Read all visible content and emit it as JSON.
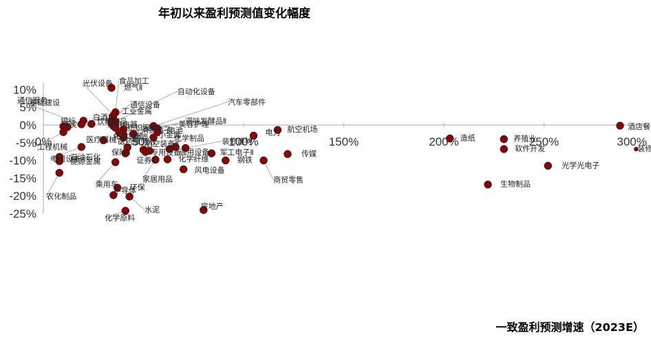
{
  "chart_data": {
    "type": "scatter",
    "title": "年初以来盈利预测值变化幅度",
    "xlabel": "一致盈利预测增速（2023E）",
    "ylabel": "",
    "xlim": [
      0,
      300
    ],
    "ylim": [
      -25,
      12
    ],
    "x_ticks": [
      0,
      50,
      100,
      150,
      200,
      250,
      300
    ],
    "x_tick_labels": [
      "0%",
      "50%",
      "100%",
      "150%",
      "200%",
      "250%",
      "300%"
    ],
    "y_ticks": [
      10,
      5,
      0,
      -5,
      -10,
      -15,
      -20,
      -25
    ],
    "y_tick_labels": [
      "10%",
      "5%",
      "0%",
      "-5%",
      "-10%",
      "-15%",
      "-20%",
      "-25%"
    ],
    "marker_color": "#7b0a0a",
    "axis_color": "#aaaaaa",
    "points": [
      {
        "name": "燃气Ⅱ",
        "x": 34,
        "y": 10.5
      },
      {
        "name": "食品加工",
        "x": 36,
        "y": 3.6
      },
      {
        "name": "光伏设备",
        "x": 35,
        "y": 2.7
      },
      {
        "name": "通信设备",
        "x": 34,
        "y": 1.2
      },
      {
        "name": "自动化设备",
        "x": 36,
        "y": 1
      },
      {
        "name": "基础建设",
        "x": 20,
        "y": 1.2
      },
      {
        "name": "通信服务",
        "x": 19,
        "y": 0.2
      },
      {
        "name": "白酒Ⅱ",
        "x": 24,
        "y": 0.3
      },
      {
        "name": "工业金属",
        "x": 34,
        "y": 0.5
      },
      {
        "name": "饮料制品",
        "x": 35,
        "y": -0.3
      },
      {
        "name": "汽车零部件",
        "x": 55,
        "y": -0.3
      },
      {
        "name": "煤炭",
        "x": 12,
        "y": -0.6
      },
      {
        "name": "家用电器",
        "x": 36,
        "y": -0.8
      },
      {
        "name": "调味发酵品Ⅱ",
        "x": 57,
        "y": -1
      },
      {
        "name": "航空机场",
        "x": 117,
        "y": -1.4
      },
      {
        "name": "银行",
        "x": 10,
        "y": -0.4
      },
      {
        "name": "纺织服饰",
        "x": 40,
        "y": -1.2
      },
      {
        "name": "电池",
        "x": 57,
        "y": -2
      },
      {
        "name": "消费电子",
        "x": 45,
        "y": -2.5
      },
      {
        "name": "小金属",
        "x": 55,
        "y": -3.5
      },
      {
        "name": "电力",
        "x": 105,
        "y": -3
      },
      {
        "name": "工程机械",
        "x": 10,
        "y": -2
      },
      {
        "name": "化学制药",
        "x": 40,
        "y": -3.5
      },
      {
        "name": "医疗器械",
        "x": 30,
        "y": -4.3
      },
      {
        "name": "物流",
        "x": 40,
        "y": -2.8
      },
      {
        "name": "美容护理",
        "x": 38,
        "y": -2.2
      },
      {
        "name": "造纸",
        "x": 203,
        "y": -3.8
      },
      {
        "name": "养殖业",
        "x": 230,
        "y": -4
      },
      {
        "name": "化学制品",
        "x": 66,
        "y": -6.2
      },
      {
        "name": "装修建材",
        "x": 71,
        "y": -6.5
      },
      {
        "name": "医药服务",
        "x": 42,
        "y": -6.3
      },
      {
        "name": "航空装备Ⅱ",
        "x": 50,
        "y": -7
      },
      {
        "name": "专用设备",
        "x": 53,
        "y": -7.3
      },
      {
        "name": "通用设备",
        "x": 63,
        "y": -6.8
      },
      {
        "name": "电网设备",
        "x": 19,
        "y": -6.2
      },
      {
        "name": "软件开发",
        "x": 230,
        "y": -6.8
      },
      {
        "name": "装修装饰Ⅱ",
        "x": 296,
        "y": -6.8
      },
      {
        "name": "证券Ⅱ",
        "x": 51,
        "y": -7.6
      },
      {
        "name": "保险Ⅱ",
        "x": 41,
        "y": -8
      },
      {
        "name": "军工电子Ⅱ",
        "x": 84,
        "y": -8
      },
      {
        "name": "传媒",
        "x": 122,
        "y": -8.2
      },
      {
        "name": "石油石化",
        "x": 8,
        "y": -9
      },
      {
        "name": "能源金属",
        "x": 8,
        "y": -10.2
      },
      {
        "name": "化学纤维",
        "x": 62,
        "y": -9.7
      },
      {
        "name": "钢铁",
        "x": 91,
        "y": -10
      },
      {
        "name": "商贸零售",
        "x": 110,
        "y": -10
      },
      {
        "name": "乘用车",
        "x": 36,
        "y": -10.5
      },
      {
        "name": "家居用品",
        "x": 56,
        "y": -9.8
      },
      {
        "name": "风电设备",
        "x": 70,
        "y": -12.5
      },
      {
        "name": "光学光电子",
        "x": 252,
        "y": -11.5
      },
      {
        "name": "农化制品",
        "x": 8,
        "y": -13.5
      },
      {
        "name": "生物制品",
        "x": 222,
        "y": -16.8
      },
      {
        "name": "环保",
        "x": 37,
        "y": -17.7
      },
      {
        "name": "半导体",
        "x": 35,
        "y": -19.8
      },
      {
        "name": "水泥",
        "x": 43,
        "y": -20.2
      },
      {
        "name": "房地产",
        "x": 80,
        "y": -24
      },
      {
        "name": "化学原料",
        "x": 41,
        "y": -24.2
      },
      {
        "name": "酒店餐饮",
        "x": 288,
        "y": -0.2
      }
    ]
  }
}
